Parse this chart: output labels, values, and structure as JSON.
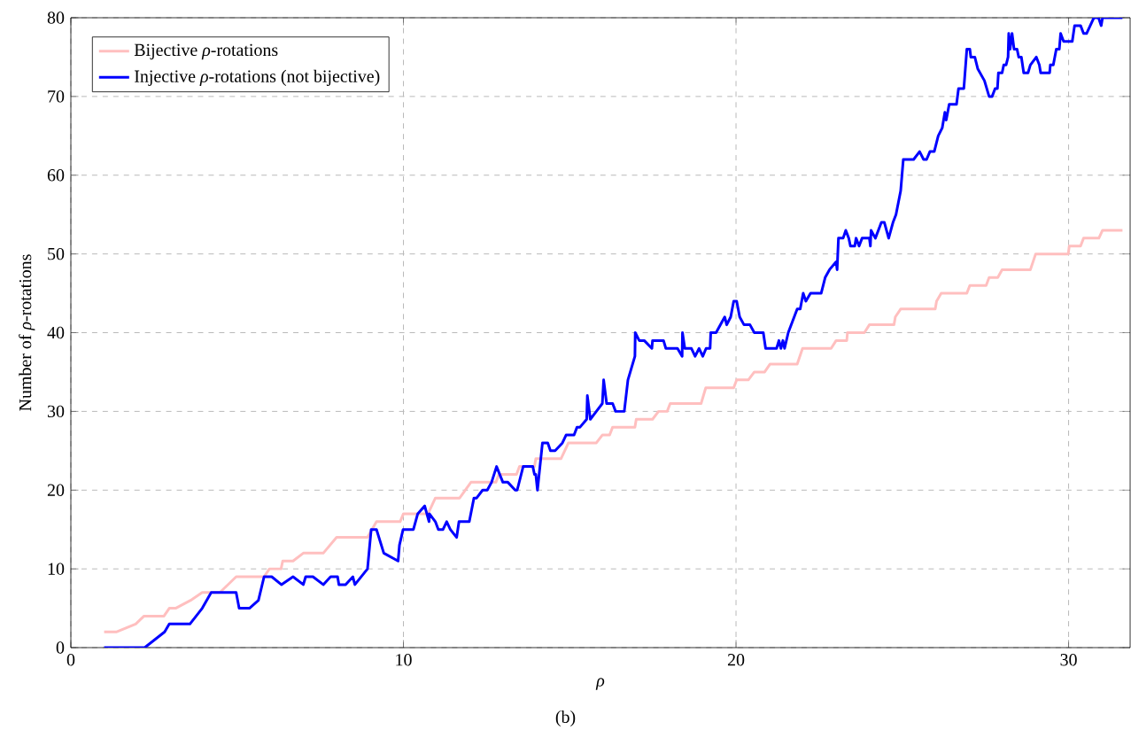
{
  "chart_data": {
    "type": "line",
    "xlabel": "ρ",
    "ylabel": "Number of *ρ*-rotations",
    "annotations": [
      "(b)"
    ],
    "xlim": [
      0,
      31.85
    ],
    "ylim": [
      0,
      80
    ],
    "xticks": [
      0,
      10,
      20,
      30
    ],
    "yticks": [
      0,
      10,
      20,
      30,
      40,
      50,
      60,
      70,
      80
    ],
    "grid": true,
    "legend": "top left",
    "marker": "none",
    "line_style": "solid",
    "series": [
      {
        "name": "Bijective *ρ*-rotations",
        "color": "#ffbfbf",
        "x": [
          1,
          1.38,
          1.95,
          2.2,
          2.8,
          2.96,
          3.15,
          3.6,
          3.95,
          4.48,
          4.97,
          5.81,
          5.97,
          6.32,
          6.37,
          6.68,
          6.99,
          7.59,
          7.99,
          8.92,
          9.19,
          9.9,
          10.0,
          10.74,
          10.96,
          11.69,
          12.03,
          12.78,
          12.87,
          13.4,
          13.49,
          13.94,
          13.98,
          14.74,
          14.96,
          15.8,
          15.98,
          16.2,
          16.29,
          16.96,
          17.0,
          17.49,
          17.67,
          17.93,
          18.02,
          18.95,
          19.09,
          19.93,
          20.02,
          20.37,
          20.55,
          20.86,
          21.02,
          21.84,
          22.0,
          22.86,
          23.01,
          23.33,
          23.35,
          23.86,
          24.01,
          24.75,
          24.79,
          24.95,
          25.99,
          26.03,
          26.17,
          26.94,
          27.03,
          27.52,
          27.61,
          27.87,
          28.0,
          28.85,
          29.01,
          29.99,
          30.02,
          30.36,
          30.45,
          30.91,
          31.02,
          31.62
        ],
        "values": [
          2,
          2,
          3,
          4,
          4,
          5,
          5,
          6,
          7,
          7,
          9,
          9,
          10,
          10,
          11,
          11,
          12,
          12,
          14,
          14,
          16,
          16,
          17,
          17,
          19,
          19,
          21,
          21,
          22,
          22,
          23,
          23,
          24,
          24,
          26,
          26,
          27,
          27,
          28,
          28,
          29,
          29,
          30,
          30,
          31,
          31,
          33,
          33,
          34,
          34,
          35,
          35,
          36,
          36,
          38,
          38,
          39,
          39,
          40,
          40,
          41,
          41,
          42,
          43,
          43,
          44,
          45,
          45,
          46,
          46,
          47,
          47,
          48,
          48,
          50,
          50,
          51,
          51,
          52,
          52,
          53,
          53
        ]
      },
      {
        "name": "Injective *ρ*-rotations (not bijective)",
        "color": "#0000ff",
        "x": [
          1,
          2.22,
          2.82,
          2.96,
          3.58,
          3.95,
          4.22,
          4.97,
          5.06,
          5.37,
          5.64,
          5.81,
          6.04,
          6.33,
          6.68,
          6.99,
          7.06,
          7.28,
          7.59,
          7.81,
          8.02,
          8.06,
          8.26,
          8.48,
          8.54,
          8.92,
          9.03,
          9.19,
          9.41,
          9.84,
          9.88,
          9.99,
          10.3,
          10.43,
          10.64,
          10.77,
          10.78,
          10.96,
          11.05,
          11.19,
          11.3,
          11.41,
          11.6,
          11.67,
          11.98,
          12.12,
          12.2,
          12.38,
          12.52,
          12.65,
          12.8,
          12.99,
          13.14,
          13.36,
          13.42,
          13.6,
          13.89,
          13.94,
          13.98,
          14.03,
          14.18,
          14.34,
          14.42,
          14.56,
          14.78,
          14.89,
          15.13,
          15.22,
          15.31,
          15.51,
          15.53,
          15.62,
          15.8,
          15.98,
          16.02,
          16.11,
          16.29,
          16.38,
          16.64,
          16.75,
          16.96,
          16.97,
          17.09,
          17.24,
          17.47,
          17.49,
          17.82,
          17.89,
          18.24,
          18.38,
          18.39,
          18.46,
          18.66,
          18.77,
          18.89,
          19.0,
          19.1,
          19.22,
          19.24,
          19.4,
          19.66,
          19.72,
          19.84,
          19.93,
          20.02,
          20.11,
          20.24,
          20.42,
          20.55,
          20.82,
          20.89,
          21.22,
          21.29,
          21.35,
          21.41,
          21.46,
          21.57,
          21.84,
          21.93,
          22.02,
          22.1,
          22.24,
          22.56,
          22.68,
          22.81,
          23.01,
          23.04,
          23.08,
          23.22,
          23.3,
          23.39,
          23.44,
          23.57,
          23.61,
          23.7,
          23.79,
          24.01,
          24.04,
          24.06,
          24.19,
          24.37,
          24.46,
          24.59,
          24.72,
          24.81,
          24.95,
          25.03,
          25.34,
          25.52,
          25.64,
          25.73,
          25.83,
          25.96,
          26.08,
          26.2,
          26.28,
          26.32,
          26.41,
          26.63,
          26.69,
          26.85,
          26.94,
          27.03,
          27.06,
          27.18,
          27.27,
          27.47,
          27.61,
          27.7,
          27.79,
          27.86,
          27.89,
          28.0,
          28.05,
          28.12,
          28.18,
          28.2,
          28.24,
          28.3,
          28.36,
          28.45,
          28.5,
          28.58,
          28.65,
          28.78,
          28.85,
          29.03,
          29.12,
          29.16,
          29.43,
          29.45,
          29.54,
          29.63,
          29.72,
          29.76,
          29.85,
          30.11,
          30.18,
          30.36,
          30.45,
          30.54,
          30.76,
          30.9,
          30.98,
          31.02,
          31.62
        ],
        "values": [
          0,
          0,
          2,
          3,
          3,
          5,
          7,
          7,
          5,
          5,
          6,
          9,
          9,
          8,
          9,
          8,
          9,
          9,
          8,
          9,
          9,
          8,
          8,
          9,
          8,
          10,
          15,
          15,
          12,
          11,
          13,
          15,
          15,
          17,
          18,
          16,
          17,
          16,
          15,
          15,
          16,
          15,
          14,
          16,
          16,
          19,
          19,
          20,
          20,
          21,
          23,
          21,
          21,
          20,
          20,
          23,
          23,
          22,
          22,
          20,
          26,
          26,
          25,
          25,
          26,
          27,
          27,
          28,
          28,
          29,
          32,
          29,
          30,
          31,
          34,
          31,
          31,
          30,
          30,
          34,
          37,
          40,
          39,
          39,
          38,
          39,
          39,
          38,
          38,
          37,
          40,
          38,
          38,
          37,
          38,
          37,
          38,
          38,
          40,
          40,
          42,
          41,
          42,
          44,
          44,
          42,
          41,
          41,
          40,
          40,
          38,
          38,
          39,
          38,
          39,
          38,
          40,
          43,
          43,
          45,
          44,
          45,
          45,
          47,
          48,
          49,
          48,
          52,
          52,
          53,
          52,
          51,
          51,
          52,
          51,
          52,
          52,
          51,
          53,
          52,
          54,
          54,
          52,
          54,
          55,
          58,
          62,
          62,
          63,
          62,
          62,
          63,
          63,
          65,
          66,
          68,
          67,
          69,
          69,
          71,
          71,
          76,
          76,
          75,
          75,
          73.5,
          72,
          70,
          70,
          71,
          71,
          73,
          73,
          74,
          74,
          75,
          78,
          76,
          78,
          76,
          76,
          75,
          75,
          73,
          73,
          74,
          75,
          74,
          73,
          73,
          74,
          74,
          76,
          76,
          78,
          77,
          77,
          79,
          79,
          78,
          78,
          80,
          80,
          79,
          80,
          80
        ]
      }
    ]
  }
}
